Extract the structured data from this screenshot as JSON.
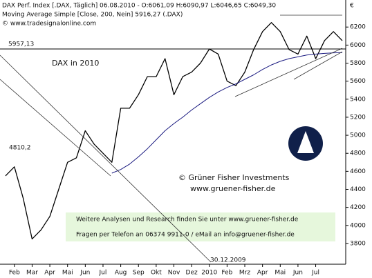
{
  "chart_data": {
    "type": "line",
    "header": [
      "DAX Perf. Index [.DAX, Täglich] 06.08.2010 - O:6061,09 H:6090,97 L:6046,65 C:6049,30",
      "Moving Average Simple [Close, 200, Nein] 5916,27 (.DAX)",
      "© www.tradesignalonline.com"
    ],
    "y_unit": "€",
    "categories": [
      null,
      "Feb",
      null,
      "Mar",
      null,
      "Apr",
      null,
      "Mai",
      null,
      "Jun",
      null,
      "Jul",
      null,
      "Aug",
      null,
      "Sep",
      null,
      "Okt",
      null,
      "Nov",
      null,
      "Dez",
      null,
      "2010",
      null,
      "Feb",
      null,
      "Mrz",
      null,
      "Apr",
      null,
      "Mai",
      null,
      "Jun",
      null,
      "Jul",
      null,
      null,
      null
    ],
    "series": [
      {
        "name": "DAX Perf. Index",
        "color": "#000000",
        "values": [
          4550,
          4650,
          4300,
          3850,
          3950,
          4100,
          4400,
          4700,
          4750,
          5050,
          4900,
          4800,
          4700,
          5300,
          5300,
          5450,
          5650,
          5650,
          5850,
          5450,
          5650,
          5700,
          5800,
          5957,
          5900,
          5600,
          5550,
          5700,
          5950,
          6150,
          6250,
          6150,
          5950,
          5900,
          6100,
          5850,
          6050,
          6150,
          6049.3
        ]
      },
      {
        "name": "Moving Average Simple",
        "color": "#1a1a80",
        "values": [
          null,
          null,
          null,
          null,
          null,
          null,
          null,
          null,
          null,
          null,
          null,
          null,
          4580,
          4620,
          4680,
          4760,
          4850,
          4950,
          5050,
          5130,
          5200,
          5280,
          5350,
          5420,
          5480,
          5530,
          5570,
          5620,
          5670,
          5730,
          5780,
          5820,
          5850,
          5870,
          5890,
          5900,
          5908,
          5914,
          5916.27
        ]
      }
    ],
    "ylim": [
      3570,
      6500
    ],
    "yticks": [
      3800,
      4000,
      4200,
      4400,
      4600,
      4800,
      5000,
      5200,
      5400,
      5600,
      5800,
      6000,
      6200
    ],
    "hline": {
      "value": 5957.13,
      "label": "5957,13"
    },
    "annotations": [
      "DAX in 2010",
      "4810,2",
      "© Grüner Fisher Investments",
      "www.gruener-fisher.de",
      "Weitere Analysen und Research finden Sie unter www.gruener-fisher.de",
      "Fragen per Telefon an 06374 9911-0 / eMail an info@gruener-fisher.de",
      "30.12.2009"
    ]
  }
}
